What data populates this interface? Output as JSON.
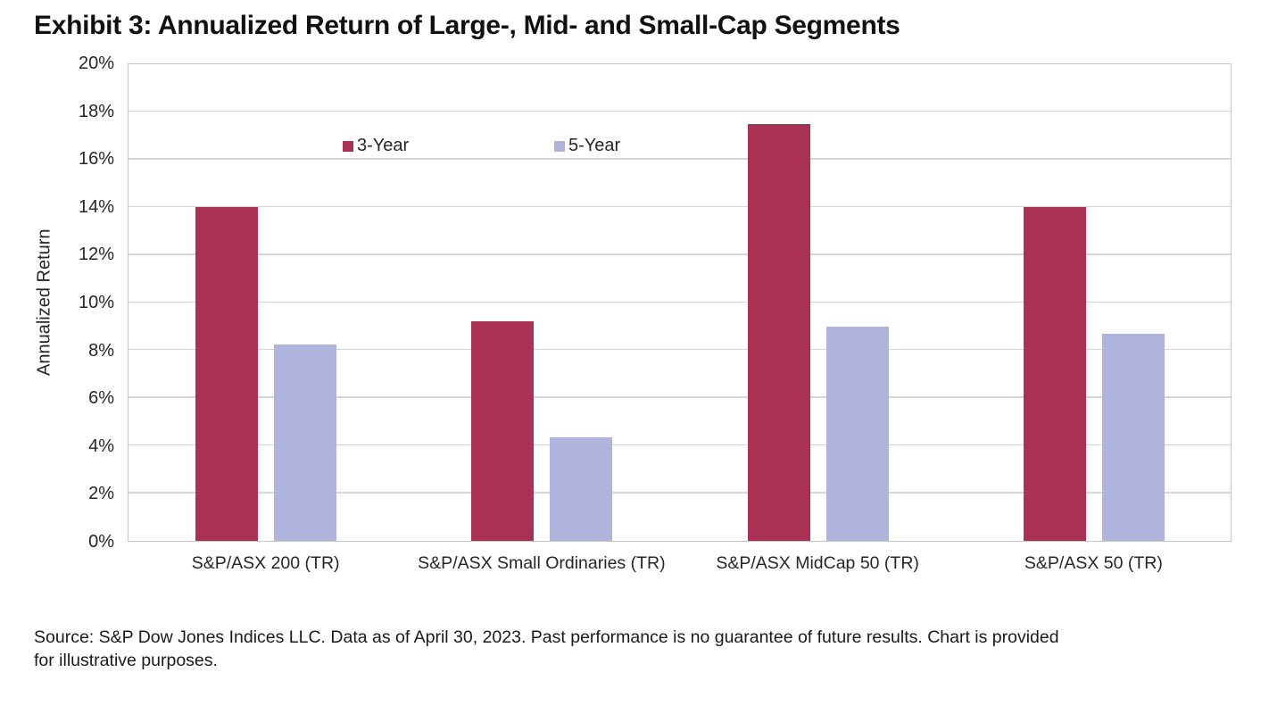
{
  "title": "Exhibit 3: Annualized Return of Large-, Mid- and Small-Cap Segments",
  "source_note": "Source: S&P Dow Jones Indices LLC. Data as of April 30, 2023. Past performance is no guarantee of future results. Chart is provided for illustrative purposes.",
  "chart_data": {
    "type": "bar",
    "title": "Exhibit 3: Annualized Return of Large-, Mid- and Small-Cap Segments",
    "categories": [
      "S&P/ASX 200 (TR)",
      "S&P/ASX Small Ordinaries (TR)",
      "S&P/ASX MidCap 50 (TR)",
      "S&P/ASX 50 (TR)"
    ],
    "series": [
      {
        "name": "3-Year",
        "color": "#A93154",
        "values": [
          14.0,
          9.2,
          17.5,
          14.0
        ]
      },
      {
        "name": "5-Year",
        "color": "#AEB4DC",
        "values": [
          8.25,
          4.35,
          9.0,
          8.7
        ]
      }
    ],
    "xlabel": "",
    "ylabel": "Annualized Return",
    "ylim": [
      0,
      20
    ],
    "ytick_step": 2,
    "ytick_suffix": "%",
    "grid": true,
    "legend_position": "top-inside",
    "legend_labels": [
      "3-Year",
      "5-Year"
    ]
  },
  "colors": {
    "series_3_year": "#A93154",
    "series_5_year": "#AEB4DC",
    "gridline": "#D6D6D6",
    "plot_border": "#C6C6C6",
    "text": "#262626",
    "title_text": "#111111",
    "background": "#FFFFFF"
  }
}
